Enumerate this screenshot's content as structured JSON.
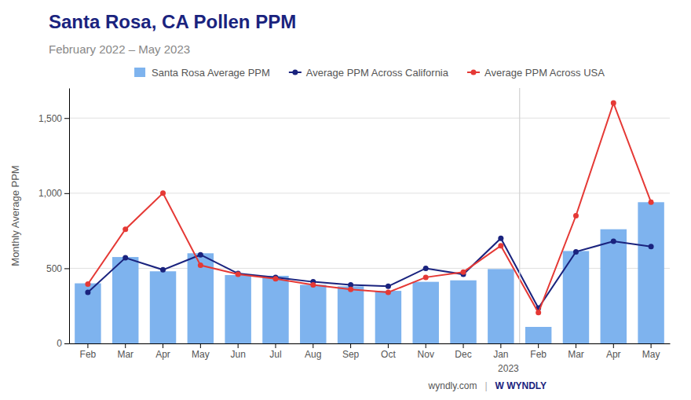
{
  "chart_data": {
    "type": "bar",
    "title": "Santa Rosa, CA Pollen PPM",
    "subtitle": "February 2022 – May 2023",
    "y_label": "Monthly Average PPM",
    "categories": [
      "Feb",
      "Mar",
      "Apr",
      "May",
      "Jun",
      "Jul",
      "Aug",
      "Sep",
      "Oct",
      "Nov",
      "Dec",
      "Jan",
      "Feb",
      "Mar",
      "Apr",
      "May"
    ],
    "series": [
      {
        "name": "Santa Rosa Average PPM",
        "type": "bar",
        "color": "#7EB3EE",
        "values": [
          400,
          575,
          480,
          600,
          455,
          450,
          390,
          380,
          350,
          410,
          420,
          495,
          110,
          615,
          760,
          940
        ]
      },
      {
        "name": "Average PPM Across California",
        "type": "line",
        "color": "#1a237e",
        "marker": "circle",
        "values": [
          340,
          570,
          490,
          590,
          465,
          440,
          410,
          390,
          380,
          500,
          460,
          700,
          235,
          610,
          680,
          645
        ]
      },
      {
        "name": "Average PPM Across USA",
        "type": "line",
        "color": "#e53935",
        "marker": "circle",
        "values": [
          395,
          760,
          1000,
          520,
          460,
          430,
          390,
          360,
          340,
          440,
          475,
          650,
          205,
          850,
          1600,
          940
        ]
      }
    ],
    "ylim": [
      0,
      1700
    ],
    "yticks": [
      0,
      500,
      {
        "value": 1000,
        "label": "1,000"
      },
      {
        "value": 1500,
        "label": "1,500"
      }
    ],
    "grid": true,
    "legend": "top",
    "annotations": [
      "2023",
      "wyndly.com",
      "|",
      "W  WYNDLY"
    ]
  }
}
